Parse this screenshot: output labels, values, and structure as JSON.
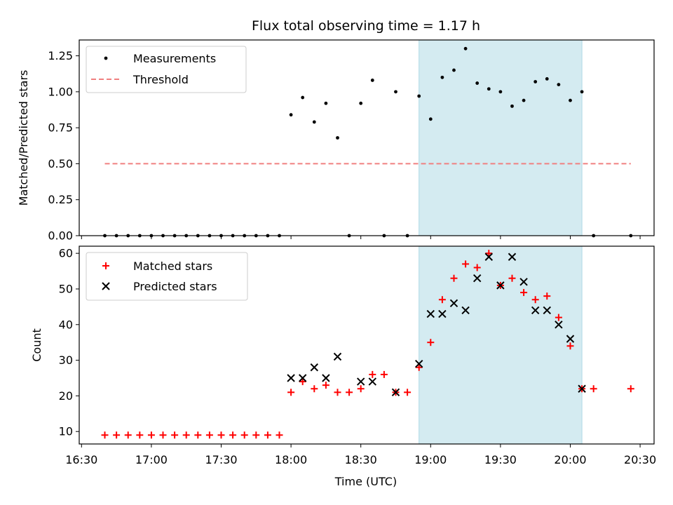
{
  "chart_data": {
    "title": "Flux total observing time = 1.17 h",
    "xlabel": "Time (UTC)",
    "x_ticks": [
      "16:30",
      "17:00",
      "17:30",
      "18:00",
      "18:30",
      "19:00",
      "19:30",
      "20:00",
      "20:30"
    ],
    "xlim": [
      "16:29",
      "20:36"
    ],
    "highlight_span": [
      "18:55",
      "20:05"
    ],
    "colors": {
      "highlight": "#d4ebf1",
      "highlight_edge": "#add8e6",
      "threshold": "#f08080",
      "matched": "#ff0000",
      "predicted": "#000000",
      "measurement": "#000000"
    },
    "panels": [
      {
        "type": "scatter",
        "ylabel": "Matched/Predicted stars",
        "ylim": [
          0,
          1.36
        ],
        "y_ticks": [
          0,
          0.25,
          0.5,
          0.75,
          1.0,
          1.25
        ],
        "y_tick_labels": [
          "0.00",
          "0.25",
          "0.50",
          "0.75",
          "1.00",
          "1.25"
        ],
        "legend_position": "top-left",
        "series": [
          {
            "name": "Measurements",
            "marker": "dot",
            "points": [
              [
                "16:40",
                0
              ],
              [
                "16:45",
                0
              ],
              [
                "16:50",
                0
              ],
              [
                "16:55",
                0
              ],
              [
                "17:00",
                0
              ],
              [
                "17:05",
                0
              ],
              [
                "17:10",
                0
              ],
              [
                "17:15",
                0
              ],
              [
                "17:20",
                0
              ],
              [
                "17:25",
                0
              ],
              [
                "17:30",
                0
              ],
              [
                "17:35",
                0
              ],
              [
                "17:40",
                0
              ],
              [
                "17:45",
                0
              ],
              [
                "17:50",
                0
              ],
              [
                "17:55",
                0
              ],
              [
                "18:00",
                0.84
              ],
              [
                "18:05",
                0.96
              ],
              [
                "18:10",
                0.79
              ],
              [
                "18:15",
                0.92
              ],
              [
                "18:20",
                0.68
              ],
              [
                "18:25",
                0
              ],
              [
                "18:30",
                0.92
              ],
              [
                "18:35",
                1.08
              ],
              [
                "18:40",
                0
              ],
              [
                "18:45",
                1.0
              ],
              [
                "18:50",
                0
              ],
              [
                "18:55",
                0.97
              ],
              [
                "19:00",
                0.81
              ],
              [
                "19:05",
                1.1
              ],
              [
                "19:10",
                1.15
              ],
              [
                "19:15",
                1.3
              ],
              [
                "19:20",
                1.06
              ],
              [
                "19:25",
                1.02
              ],
              [
                "19:30",
                1.0
              ],
              [
                "19:35",
                0.9
              ],
              [
                "19:40",
                0.94
              ],
              [
                "19:45",
                1.07
              ],
              [
                "19:50",
                1.09
              ],
              [
                "19:55",
                1.05
              ],
              [
                "20:00",
                0.94
              ],
              [
                "20:05",
                1.0
              ],
              [
                "20:10",
                0
              ],
              [
                "20:26",
                0
              ]
            ]
          },
          {
            "name": "Threshold",
            "marker": "dashed-line",
            "points": [
              [
                "16:40",
                0.5
              ],
              [
                "20:26",
                0.5
              ]
            ]
          }
        ]
      },
      {
        "type": "scatter",
        "ylabel": "Count",
        "ylim": [
          6.5,
          62
        ],
        "y_ticks": [
          10,
          20,
          30,
          40,
          50,
          60
        ],
        "y_tick_labels": [
          "10",
          "20",
          "30",
          "40",
          "50",
          "60"
        ],
        "legend_position": "top-left",
        "series": [
          {
            "name": "Matched stars",
            "marker": "plus",
            "points": [
              [
                "16:40",
                9
              ],
              [
                "16:45",
                9
              ],
              [
                "16:50",
                9
              ],
              [
                "16:55",
                9
              ],
              [
                "17:00",
                9
              ],
              [
                "17:05",
                9
              ],
              [
                "17:10",
                9
              ],
              [
                "17:15",
                9
              ],
              [
                "17:20",
                9
              ],
              [
                "17:25",
                9
              ],
              [
                "17:30",
                9
              ],
              [
                "17:35",
                9
              ],
              [
                "17:40",
                9
              ],
              [
                "17:45",
                9
              ],
              [
                "17:50",
                9
              ],
              [
                "17:55",
                9
              ],
              [
                "18:00",
                21
              ],
              [
                "18:05",
                24
              ],
              [
                "18:10",
                22
              ],
              [
                "18:15",
                23
              ],
              [
                "18:20",
                21
              ],
              [
                "18:25",
                21
              ],
              [
                "18:30",
                22
              ],
              [
                "18:35",
                26
              ],
              [
                "18:40",
                26
              ],
              [
                "18:45",
                21
              ],
              [
                "18:50",
                21
              ],
              [
                "18:55",
                28
              ],
              [
                "19:00",
                35
              ],
              [
                "19:05",
                47
              ],
              [
                "19:10",
                53
              ],
              [
                "19:15",
                57
              ],
              [
                "19:20",
                56
              ],
              [
                "19:25",
                60
              ],
              [
                "19:30",
                51
              ],
              [
                "19:35",
                53
              ],
              [
                "19:40",
                49
              ],
              [
                "19:45",
                47
              ],
              [
                "19:50",
                48
              ],
              [
                "19:55",
                42
              ],
              [
                "20:00",
                34
              ],
              [
                "20:05",
                22
              ],
              [
                "20:10",
                22
              ],
              [
                "20:26",
                22
              ]
            ]
          },
          {
            "name": "Predicted stars",
            "marker": "x",
            "points": [
              [
                "18:00",
                25
              ],
              [
                "18:05",
                25
              ],
              [
                "18:10",
                28
              ],
              [
                "18:15",
                25
              ],
              [
                "18:20",
                31
              ],
              [
                "18:30",
                24
              ],
              [
                "18:35",
                24
              ],
              [
                "18:45",
                21
              ],
              [
                "18:55",
                29
              ],
              [
                "19:00",
                43
              ],
              [
                "19:05",
                43
              ],
              [
                "19:10",
                46
              ],
              [
                "19:15",
                44
              ],
              [
                "19:20",
                53
              ],
              [
                "19:25",
                59
              ],
              [
                "19:30",
                51
              ],
              [
                "19:35",
                59
              ],
              [
                "19:40",
                52
              ],
              [
                "19:45",
                44
              ],
              [
                "19:50",
                44
              ],
              [
                "19:55",
                40
              ],
              [
                "20:00",
                36
              ],
              [
                "20:05",
                22
              ]
            ]
          }
        ]
      }
    ]
  }
}
